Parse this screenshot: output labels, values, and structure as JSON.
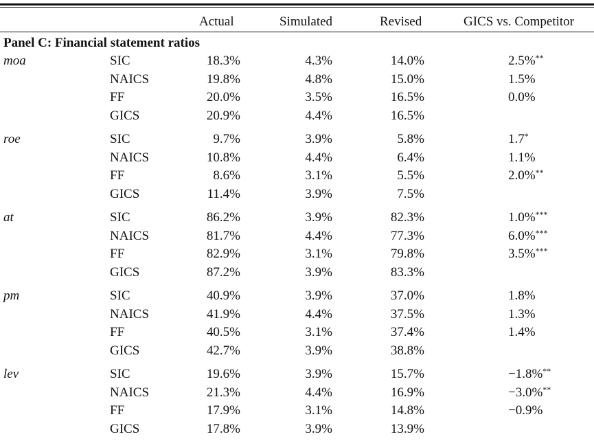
{
  "header": {
    "actual": "Actual",
    "simulated": "Simulated",
    "revised": "Revised",
    "comparison": "GICS vs. Competitor"
  },
  "panel_title": "Panel C: Financial statement ratios",
  "groups": [
    {
      "variable": "moa",
      "rows": [
        {
          "scheme": "SIC",
          "actual": "18.3%",
          "simulated": "4.3%",
          "revised": "14.0%",
          "comparison": "2.5%",
          "sig": "**"
        },
        {
          "scheme": "NAICS",
          "actual": "19.8%",
          "simulated": "4.8%",
          "revised": "15.0%",
          "comparison": "1.5%",
          "sig": ""
        },
        {
          "scheme": "FF",
          "actual": "20.0%",
          "simulated": "3.5%",
          "revised": "16.5%",
          "comparison": "0.0%",
          "sig": ""
        },
        {
          "scheme": "GICS",
          "actual": "20.9%",
          "simulated": "4.4%",
          "revised": "16.5%",
          "comparison": "",
          "sig": ""
        }
      ]
    },
    {
      "variable": "roe",
      "rows": [
        {
          "scheme": "SIC",
          "actual": "9.7%",
          "simulated": "3.9%",
          "revised": "5.8%",
          "comparison": "1.7",
          "sig": "*"
        },
        {
          "scheme": "NAICS",
          "actual": "10.8%",
          "simulated": "4.4%",
          "revised": "6.4%",
          "comparison": "1.1%",
          "sig": ""
        },
        {
          "scheme": "FF",
          "actual": "8.6%",
          "simulated": "3.1%",
          "revised": "5.5%",
          "comparison": "2.0%",
          "sig": "**"
        },
        {
          "scheme": "GICS",
          "actual": "11.4%",
          "simulated": "3.9%",
          "revised": "7.5%",
          "comparison": "",
          "sig": ""
        }
      ]
    },
    {
      "variable": "at",
      "rows": [
        {
          "scheme": "SIC",
          "actual": "86.2%",
          "simulated": "3.9%",
          "revised": "82.3%",
          "comparison": "1.0%",
          "sig": "***"
        },
        {
          "scheme": "NAICS",
          "actual": "81.7%",
          "simulated": "4.4%",
          "revised": "77.3%",
          "comparison": "6.0%",
          "sig": "***"
        },
        {
          "scheme": "FF",
          "actual": "82.9%",
          "simulated": "3.1%",
          "revised": "79.8%",
          "comparison": "3.5%",
          "sig": "***"
        },
        {
          "scheme": "GICS",
          "actual": "87.2%",
          "simulated": "3.9%",
          "revised": "83.3%",
          "comparison": "",
          "sig": ""
        }
      ]
    },
    {
      "variable": "pm",
      "rows": [
        {
          "scheme": "SIC",
          "actual": "40.9%",
          "simulated": "3.9%",
          "revised": "37.0%",
          "comparison": "1.8%",
          "sig": ""
        },
        {
          "scheme": "NAICS",
          "actual": "41.9%",
          "simulated": "4.4%",
          "revised": "37.5%",
          "comparison": "1.3%",
          "sig": ""
        },
        {
          "scheme": "FF",
          "actual": "40.5%",
          "simulated": "3.1%",
          "revised": "37.4%",
          "comparison": "1.4%",
          "sig": ""
        },
        {
          "scheme": "GICS",
          "actual": "42.7%",
          "simulated": "3.9%",
          "revised": "38.8%",
          "comparison": "",
          "sig": ""
        }
      ]
    },
    {
      "variable": "lev",
      "rows": [
        {
          "scheme": "SIC",
          "actual": "19.6%",
          "simulated": "3.9%",
          "revised": "15.7%",
          "comparison": "−1.8%",
          "sig": "**"
        },
        {
          "scheme": "NAICS",
          "actual": "21.3%",
          "simulated": "4.4%",
          "revised": "16.9%",
          "comparison": "−3.0%",
          "sig": "**"
        },
        {
          "scheme": "FF",
          "actual": "17.9%",
          "simulated": "3.1%",
          "revised": "14.8%",
          "comparison": "−0.9%",
          "sig": ""
        },
        {
          "scheme": "GICS",
          "actual": "17.8%",
          "simulated": "3.9%",
          "revised": "13.9%",
          "comparison": "",
          "sig": ""
        }
      ]
    }
  ]
}
